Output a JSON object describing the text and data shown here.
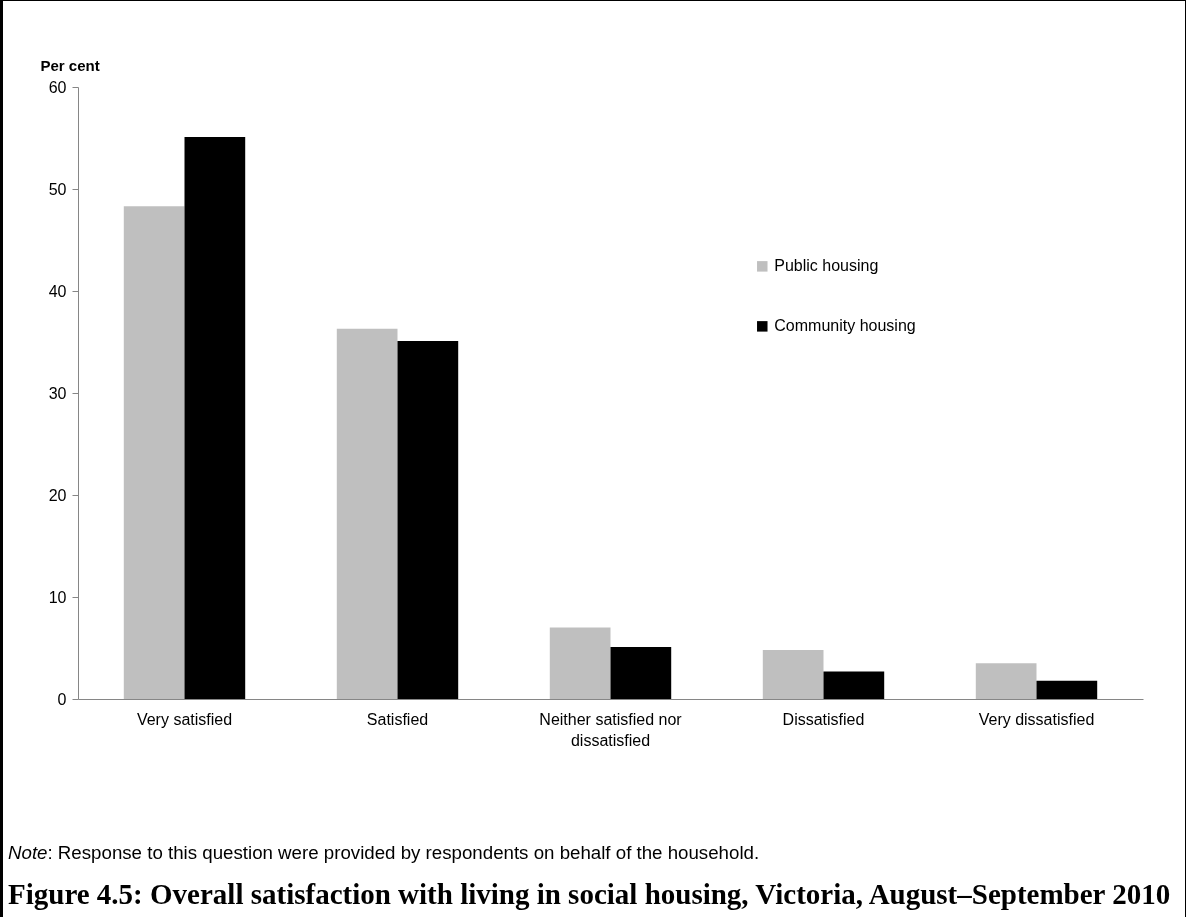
{
  "chart_data": {
    "type": "bar",
    "title": "Figure 4.5: Overall satisfaction with living in social housing, Victoria, August–September 2010",
    "ylabel": "Per cent",
    "annotations": [
      "Note: Response to this question were provided by respondents on behalf of the household."
    ],
    "categories": [
      "Very satisfied",
      "Satisfied",
      "Neither satisfied nor dissatisfied",
      "Dissatisfied",
      "Very dissatisfied"
    ],
    "series": [
      {
        "name": "Public housing",
        "color": "#bfbfbf",
        "values": [
          48.3,
          36.3,
          7.0,
          4.8,
          3.5
        ]
      },
      {
        "name": "Community housing",
        "color": "#000000",
        "values": [
          55.1,
          35.1,
          5.1,
          2.7,
          1.8
        ]
      }
    ],
    "ylim": [
      0,
      60
    ],
    "yticks": [
      0,
      10,
      20,
      30,
      40,
      50,
      60
    ],
    "grid": false,
    "legend": "top right"
  }
}
